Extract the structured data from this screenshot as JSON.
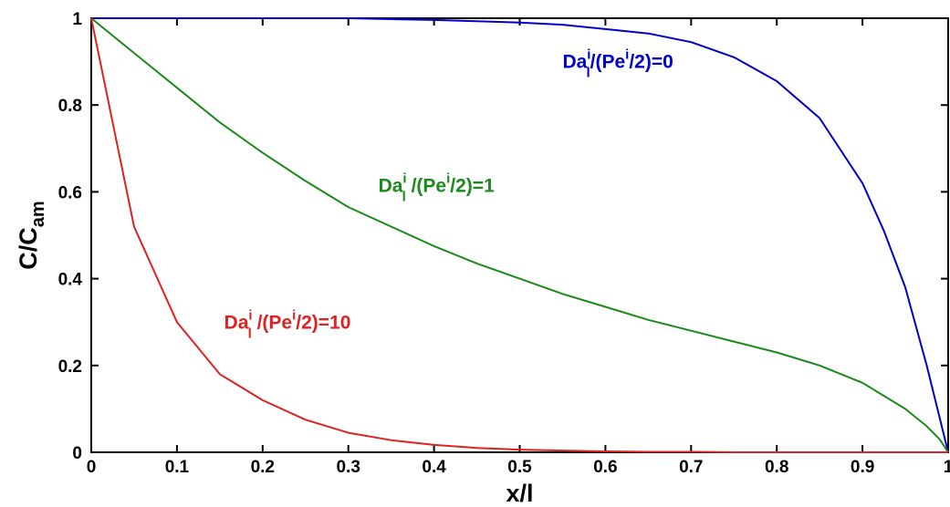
{
  "chart_data": {
    "type": "line",
    "title": "",
    "xlabel": "x/l",
    "ylabel": {
      "main": "C/C",
      "sub": "am"
    },
    "xlim": [
      0,
      1
    ],
    "ylim": [
      0,
      1
    ],
    "grid": false,
    "legend": "none",
    "x_ticks": [
      "0",
      "0.1",
      "0.2",
      "0.3",
      "0.4",
      "0.5",
      "0.6",
      "0.7",
      "0.8",
      "0.9",
      "1"
    ],
    "y_ticks": [
      "0",
      "0.2",
      "0.4",
      "0.6",
      "0.8",
      "1"
    ],
    "x": [
      0,
      0.05,
      0.1,
      0.15,
      0.2,
      0.25,
      0.3,
      0.35,
      0.4,
      0.45,
      0.5,
      0.55,
      0.6,
      0.65,
      0.7,
      0.75,
      0.8,
      0.85,
      0.9,
      0.925,
      0.95,
      0.975,
      0.99,
      1
    ],
    "series": [
      {
        "color": "#0000cc",
        "values": [
          1,
          1,
          1,
          1,
          1,
          1,
          1,
          0.998,
          0.996,
          0.993,
          0.99,
          0.985,
          0.975,
          0.965,
          0.945,
          0.91,
          0.855,
          0.77,
          0.62,
          0.51,
          0.38,
          0.2,
          0.08,
          0
        ]
      },
      {
        "color": "#1a8a1a",
        "values": [
          1,
          0.92,
          0.84,
          0.76,
          0.69,
          0.625,
          0.565,
          0.52,
          0.475,
          0.435,
          0.4,
          0.365,
          0.335,
          0.305,
          0.28,
          0.255,
          0.23,
          0.2,
          0.16,
          0.13,
          0.1,
          0.06,
          0.03,
          0
        ]
      },
      {
        "color": "#dd2222",
        "values": [
          1,
          0.52,
          0.3,
          0.18,
          0.12,
          0.075,
          0.045,
          0.028,
          0.017,
          0.01,
          0.006,
          0.004,
          0.002,
          0.001,
          0.001,
          0,
          0,
          0,
          0,
          0,
          0,
          0,
          0,
          0
        ]
      }
    ],
    "annotations": [
      {
        "text": "Da",
        "sub": "l",
        "sup": "i",
        "rest": "/(Pe",
        "sup2": "i",
        "end": "/2)=0",
        "color": "#0000cc",
        "x": 0.55,
        "y": 0.885
      },
      {
        "text": "Da",
        "sub": "l",
        "sup": "i",
        "rest": " /(Pe",
        "sup2": "i",
        "end": "/2)=1",
        "color": "#1a8a1a",
        "x": 0.335,
        "y": 0.6
      },
      {
        "text": "Da",
        "sub": "l",
        "sup": "i",
        "rest": " /(Pe",
        "sup2": "i",
        "end": "/2)=10",
        "color": "#dd2222",
        "x": 0.155,
        "y": 0.285
      }
    ]
  }
}
